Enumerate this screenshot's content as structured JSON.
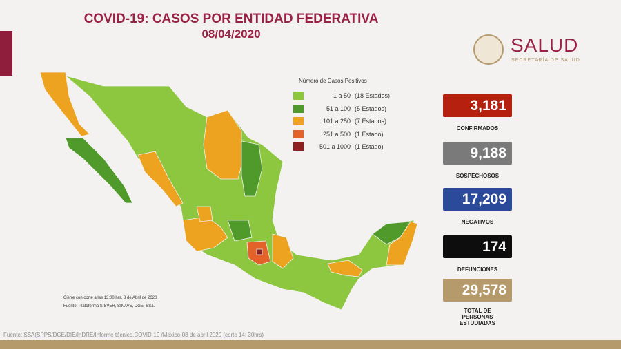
{
  "header": {
    "title": "COVID-19: CASOS POR ENTIDAD FEDERATIVA",
    "date": "08/04/2020"
  },
  "logo": {
    "name": "SALUD",
    "subtitle": "SECRETARÍA DE SALUD"
  },
  "legend": {
    "title": "Número de Casos Positivos",
    "items": [
      {
        "range": "1 a 50",
        "count": "(18 Estados)",
        "color": "#8dc63f"
      },
      {
        "range": "51 a 100",
        "count": "(5 Estados)",
        "color": "#4f9a2b"
      },
      {
        "range": "101 a 250",
        "count": "(7 Estados)",
        "color": "#eea320"
      },
      {
        "range": "251 a 500",
        "count": "(1 Estado)",
        "color": "#e2622a"
      },
      {
        "range": "501 a 1000",
        "count": "(1 Estado)",
        "color": "#8c2020"
      }
    ]
  },
  "stats": [
    {
      "value": "3,181",
      "label": "CONFIRMADOS",
      "color": "#b5200f"
    },
    {
      "value": "9,188",
      "label": "SOSPECHOSOS",
      "color": "#7a7a7a"
    },
    {
      "value": "17,209",
      "label": "NEGATIVOS",
      "color": "#2c4a9a"
    },
    {
      "value": "174",
      "label": "DEFUNCIONES",
      "color": "#0d0d0d"
    },
    {
      "value": "29,578",
      "label": "TOTAL DE PERSONAS ESTUDIADAS",
      "color": "#b59a6b"
    }
  ],
  "notes": [
    "Cierre con corte a las 13:00 hrs, 8 de Abril de 2020",
    "Fuente: Plataforma SISVER, SINAVE, DGE, SSa."
  ],
  "footer": "Fuente: SSA(SPPS/DGE/DIE/InDRE/Informe técnico.COVID-19 /Mexico-08 de abril 2020 (corte 14: 30hrs)"
}
